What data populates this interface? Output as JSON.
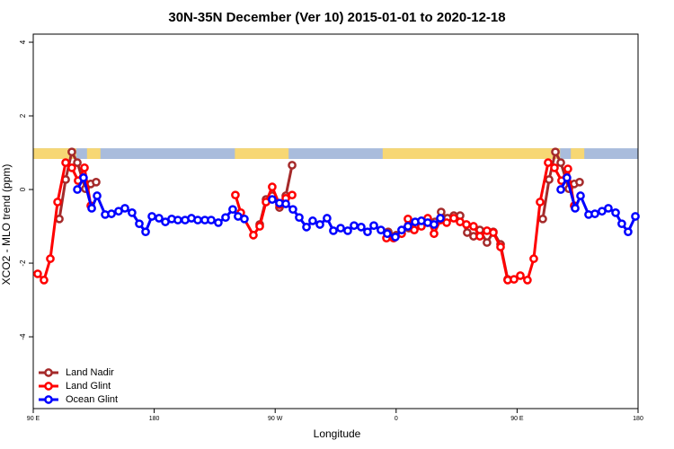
{
  "chart_data": {
    "type": "line",
    "title": "30N-35N December (Ver 10)   2015-01-01 to 2020-12-18",
    "x_label": "Longitude",
    "y_label": "XCO2 - MLO trend (ppm)",
    "xlim": [
      90,
      540
    ],
    "ylim": [
      -5.95,
      4.22
    ],
    "xticks": [
      {
        "value": 90,
        "label": "90 E"
      },
      {
        "value": 180,
        "label": "180"
      },
      {
        "value": 270,
        "label": "90 W"
      },
      {
        "value": 360,
        "label": "0"
      },
      {
        "value": 450,
        "label": "90 E"
      },
      {
        "value": 540,
        "label": "180"
      }
    ],
    "yticks": [
      4,
      2,
      0,
      -2,
      -4
    ],
    "legend": "bottom-left",
    "land_band": {
      "ylim": [
        0.83,
        1.12
      ],
      "land_color": "#f7d774",
      "ocean_color": "#a9bcdc",
      "land": [
        [
          90,
          122
        ],
        [
          130,
          140
        ],
        [
          240,
          280
        ],
        [
          350,
          482
        ],
        [
          490,
          500
        ]
      ]
    },
    "series": [
      {
        "name": "Land Nadir",
        "color": "#a52a2a",
        "x": [
          109.4,
          114.1,
          118.7,
          122.8,
          128.8,
          132.8,
          136.8,
          null,
          258.5,
          263.2,
          267.8,
          273.2,
          277.9,
          282.6,
          null,
          354.1,
          360.1,
          369.5,
          374.2,
          378.8,
          383.5,
          388.9,
          393.5,
          398.2,
          402.9,
          407.6,
          412.9,
          417.6,
          422.3,
          427.6,
          432.3,
          437.7,
          443.0,
          null,
          469.1,
          473.8,
          478.5,
          482.5,
          488.5,
          492.5,
          496.5
        ],
        "values": [
          -0.8,
          0.27,
          1.02,
          0.73,
          0.02,
          0.15,
          0.2,
          null,
          -0.95,
          -0.27,
          -0.17,
          -0.49,
          -0.17,
          0.66,
          null,
          -1.15,
          -1.24,
          -1.05,
          -1.02,
          -0.93,
          -0.9,
          -0.88,
          -0.61,
          -0.78,
          -0.71,
          -0.71,
          -1.17,
          -1.27,
          -1.1,
          -1.44,
          -1.15,
          -1.49,
          -2.44,
          null,
          -0.8,
          0.27,
          1.02,
          0.73,
          0.02,
          0.15,
          0.2
        ]
      },
      {
        "name": "Land Glint",
        "color": "#ff0000",
        "x": [
          93.3,
          98.0,
          102.7,
          108.1,
          114.1,
          118.7,
          123.4,
          128.1,
          132.8,
          null,
          240.4,
          244.4,
          253.8,
          258.5,
          263.2,
          267.8,
          273.2,
          277.9,
          282.6,
          null,
          352.8,
          358.1,
          364.1,
          368.8,
          373.5,
          378.8,
          383.5,
          388.2,
          392.9,
          397.6,
          402.9,
          407.6,
          412.3,
          417.6,
          422.3,
          427.6,
          432.3,
          437.7,
          443.0,
          447.7,
          452.4,
          457.7,
          462.4,
          467.1,
          473.1,
          477.8,
          483.1,
          487.8,
          492.5
        ],
        "values": [
          -2.29,
          -2.46,
          -1.88,
          -0.34,
          0.73,
          0.59,
          0.24,
          0.59,
          -0.44,
          null,
          -0.15,
          -0.63,
          -1.24,
          -1.0,
          -0.34,
          0.07,
          -0.41,
          -0.24,
          -0.15,
          null,
          -1.32,
          -1.32,
          -1.2,
          -0.8,
          -1.1,
          -1.0,
          -0.78,
          -1.2,
          -0.83,
          -0.9,
          -0.78,
          -0.88,
          -0.95,
          -1.0,
          -1.27,
          -1.12,
          -1.17,
          -1.56,
          -2.46,
          -2.44,
          -2.34,
          -2.46,
          -1.88,
          -0.34,
          0.73,
          0.59,
          0.24,
          0.56,
          -0.44
        ]
      },
      {
        "name": "Ocean Glint",
        "color": "#0000ff",
        "x": [
          122.8,
          127.4,
          133.5,
          137.5,
          143.5,
          148.2,
          153.5,
          158.2,
          163.5,
          168.9,
          173.6,
          178.3,
          183.6,
          188.3,
          193.0,
          197.6,
          203.0,
          207.7,
          212.4,
          217.7,
          222.4,
          227.7,
          233.1,
          238.4,
          242.4,
          247.1,
          null,
          267.8,
          273.2,
          277.9,
          283.2,
          287.9,
          293.3,
          297.9,
          303.3,
          308.6,
          313.3,
          318.7,
          324.0,
          328.7,
          334.0,
          338.7,
          343.4,
          348.7,
          353.4,
          359.4,
          364.1,
          368.8,
          374.2,
          378.8,
          383.5,
          388.2,
          392.9,
          null,
          482.5,
          487.1,
          493.2,
          497.2,
          503.2,
          507.9,
          513.2,
          517.9,
          523.3,
          527.9,
          532.6,
          538.0
        ],
        "values": [
          0.0,
          0.32,
          -0.51,
          -0.17,
          -0.68,
          -0.66,
          -0.59,
          -0.51,
          -0.63,
          -0.93,
          -1.15,
          -0.73,
          -0.78,
          -0.88,
          -0.8,
          -0.83,
          -0.83,
          -0.78,
          -0.83,
          -0.83,
          -0.83,
          -0.9,
          -0.76,
          -0.54,
          -0.73,
          -0.8,
          null,
          -0.27,
          -0.37,
          -0.39,
          -0.54,
          -0.76,
          -1.02,
          -0.85,
          -0.95,
          -0.78,
          -1.12,
          -1.05,
          -1.12,
          -0.98,
          -1.02,
          -1.15,
          -0.98,
          -1.1,
          -1.2,
          -1.29,
          -1.1,
          -1.0,
          -0.88,
          -0.85,
          -0.9,
          -0.95,
          -0.78,
          null,
          0.0,
          0.32,
          -0.51,
          -0.17,
          -0.68,
          -0.66,
          -0.59,
          -0.51,
          -0.63,
          -0.93,
          -1.15,
          -0.73
        ]
      }
    ]
  }
}
